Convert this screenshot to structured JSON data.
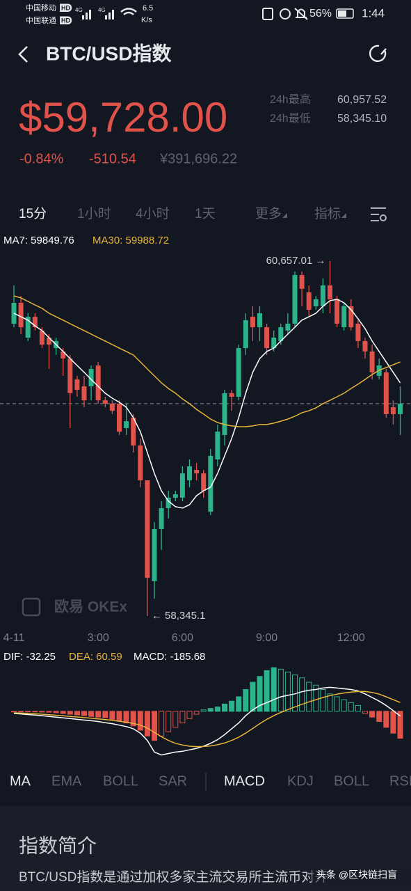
{
  "status_bar": {
    "carrier1": "中国移动",
    "carrier2": "中国联通",
    "hd": "HD",
    "net": "4G",
    "speed": "6.5",
    "speed_unit": "K/s",
    "battery": "56%",
    "time": "1:44"
  },
  "header": {
    "title": "BTC/USD指数"
  },
  "ticker": {
    "price": "$59,728.00",
    "change_pct": "-0.84%",
    "change": "-510.54",
    "cny": "¥391,696.22",
    "stats": [
      {
        "label": "24h最高",
        "value": "60,957.52"
      },
      {
        "label": "24h最低",
        "value": "58,345.10"
      }
    ]
  },
  "timeframes": [
    "15分",
    "1小时",
    "4小时",
    "1天",
    "更多",
    "指标"
  ],
  "chart_data": [
    {
      "type": "candlestick",
      "up_color": "#2bb38a",
      "down_color": "#e0524a",
      "categories": [
        "4-11",
        null,
        null,
        null,
        null,
        null,
        null,
        null,
        null,
        null,
        null,
        null,
        "3:00",
        null,
        null,
        null,
        null,
        null,
        null,
        null,
        null,
        null,
        null,
        null,
        "6:00",
        null,
        null,
        null,
        null,
        null,
        null,
        null,
        null,
        null,
        null,
        null,
        "9:00",
        null,
        null,
        null,
        null,
        null,
        null,
        null,
        null,
        null,
        null,
        null,
        "12:00",
        null,
        null,
        null,
        null,
        null,
        null,
        null
      ],
      "open": [
        60249,
        60385,
        60158,
        60294,
        60204,
        60158,
        60090,
        60068,
        60022,
        59886,
        59841,
        59841,
        59977,
        59750,
        59728,
        59728,
        59569,
        59637,
        59456,
        59229,
        58572,
        58912,
        59048,
        59116,
        59116,
        59229,
        59297,
        59274,
        59025,
        59365,
        59524,
        59796,
        59773,
        60090,
        60294,
        60226,
        60226,
        60090,
        60136,
        60204,
        60249,
        60566,
        60453,
        60362,
        60362,
        60498,
        60408,
        60226,
        60362,
        60249,
        60136,
        60068,
        59909,
        59932,
        59705,
        59660
      ],
      "high": [
        60498,
        60430,
        60317,
        60317,
        60226,
        60181,
        60158,
        60090,
        60045,
        59909,
        59909,
        59977,
        60000,
        59773,
        59750,
        59750,
        59728,
        59660,
        59501,
        59229,
        58957,
        59093,
        59161,
        59161,
        59320,
        59365,
        59342,
        59297,
        59433,
        59592,
        59818,
        59818,
        60113,
        60317,
        60362,
        60362,
        60249,
        60204,
        60249,
        60317,
        60589,
        60589,
        60498,
        60430,
        60544,
        60657.01,
        60430,
        60385,
        60408,
        60272,
        60158,
        60113,
        60022,
        59954,
        59750,
        59841
      ],
      "low": [
        60226,
        60181,
        60136,
        60204,
        60090,
        59954,
        60045,
        59909,
        59569,
        59773,
        59705,
        59750,
        59728,
        59705,
        59660,
        59524,
        59524,
        59410,
        59184,
        58345.1,
        58458,
        58776,
        58980,
        59093,
        59093,
        59184,
        59229,
        59116,
        59002,
        59320,
        59456,
        59682,
        59750,
        60045,
        60136,
        60136,
        60045,
        60068,
        60113,
        60181,
        60226,
        60362,
        60294,
        60340,
        60317,
        60317,
        60226,
        60204,
        60204,
        60090,
        60022,
        59886,
        59886,
        59637,
        59592,
        59524
      ],
      "close": [
        60385,
        60226,
        60294,
        60226,
        60113,
        60113,
        60136,
        60022,
        59796,
        59818,
        59750,
        59954,
        59750,
        59728,
        59682,
        59546,
        59614,
        59456,
        59229,
        58594,
        58912,
        59048,
        59116,
        59138,
        59274,
        59320,
        59274,
        59161,
        59388,
        59546,
        59796,
        59773,
        60090,
        60272,
        60226,
        60317,
        60090,
        60158,
        60226,
        60249,
        60566,
        60476,
        60340,
        60408,
        60498,
        60408,
        60249,
        60362,
        60226,
        60136,
        60068,
        59932,
        59977,
        59660,
        59660,
        59728
      ],
      "series": [
        {
          "name": "MA7: 59849.76",
          "color": "#ffffff",
          "values": [
            60317,
            60294,
            60272,
            60235,
            60204,
            60158,
            60113,
            60068,
            60022,
            59977,
            59932,
            59886,
            59841,
            59796,
            59764,
            59737,
            59705,
            59637,
            59546,
            59410,
            59274,
            59161,
            59093,
            59057,
            59048,
            59070,
            59129,
            59161,
            59184,
            59274,
            59388,
            59501,
            59637,
            59796,
            59932,
            60022,
            60068,
            60090,
            60136,
            60181,
            60226,
            60272,
            60294,
            60317,
            60362,
            60399,
            60408,
            60385,
            60340,
            60281,
            60217,
            60136,
            60068,
            60000,
            59932,
            59864
          ]
        },
        {
          "name": "MA30: 59988.72",
          "color": "#e8b43a",
          "values": [
            60430,
            60417,
            60394,
            60371,
            60349,
            60317,
            60294,
            60272,
            60249,
            60226,
            60204,
            60181,
            60158,
            60136,
            60113,
            60090,
            60068,
            60045,
            60000,
            59954,
            59909,
            59864,
            59827,
            59796,
            59759,
            59728,
            59691,
            59660,
            59628,
            59605,
            59592,
            59583,
            59578,
            59578,
            59583,
            59592,
            59592,
            59601,
            59614,
            59628,
            59646,
            59669,
            59682,
            59701,
            59728,
            59750,
            59773,
            59796,
            59827,
            59855,
            59886,
            59918,
            59945,
            59963,
            59982,
            60000
          ]
        }
      ],
      "price_line": 59728,
      "annotations": [
        {
          "text": "60,657.01 →",
          "x": 45,
          "y": 60657.01
        },
        {
          "text": "← 58,345.1",
          "x": 19,
          "y": 58345.1
        }
      ],
      "watermark": "欧易 OKEx",
      "ylim": [
        58277,
        60725
      ]
    },
    {
      "type": "macd",
      "up_color": "#2bb38a",
      "down_color": "#e0524a",
      "series": [
        {
          "name": "DIF: -32.25",
          "color": "#ffffff",
          "values": [
            -15,
            -18,
            -22,
            -26,
            -30,
            -35,
            -40,
            -45,
            -50,
            -55,
            -60,
            -65,
            -70,
            -78,
            -85,
            -95,
            -105,
            -120,
            -150,
            -200,
            -280,
            -300,
            -290,
            -280,
            -275,
            -265,
            -255,
            -240,
            -220,
            -195,
            -160,
            -120,
            -80,
            -30,
            10,
            40,
            60,
            80,
            100,
            110,
            120,
            135,
            145,
            150,
            160,
            165,
            160,
            155,
            150,
            140,
            120,
            95,
            70,
            40,
            5,
            -32.25
          ]
        },
        {
          "name": "DEA: 60.59",
          "color": "#e8b43a",
          "values": [
            -10,
            -12,
            -14,
            -17,
            -20,
            -23,
            -27,
            -31,
            -35,
            -39,
            -43,
            -47,
            -52,
            -57,
            -62,
            -68,
            -75,
            -83,
            -95,
            -115,
            -145,
            -175,
            -200,
            -220,
            -232,
            -240,
            -243,
            -242,
            -238,
            -230,
            -218,
            -200,
            -178,
            -150,
            -118,
            -85,
            -55,
            -30,
            -8,
            12,
            30,
            48,
            65,
            80,
            95,
            108,
            118,
            126,
            132,
            136,
            136,
            130,
            118,
            100,
            80,
            60.59
          ]
        },
        {
          "name": "MACD: -185.68",
          "color": "#ffffff",
          "bars": true,
          "values": [
            -2,
            -3,
            -3,
            -4,
            -5,
            -6,
            -10,
            -15,
            -20,
            -25,
            -30,
            -35,
            -40,
            -45,
            -55,
            -65,
            -80,
            -100,
            -130,
            -170,
            -200,
            -170,
            -140,
            -110,
            -80,
            -50,
            -20,
            10,
            20,
            30,
            50,
            70,
            100,
            150,
            200,
            240,
            280,
            300,
            290,
            270,
            250,
            230,
            200,
            180,
            150,
            120,
            100,
            80,
            60,
            40,
            -15,
            -40,
            -70,
            -110,
            -150,
            -185.68
          ]
        }
      ],
      "ylim": [
        -350,
        320
      ]
    }
  ],
  "indicator_tabs": {
    "main": [
      "MA",
      "EMA",
      "BOLL",
      "SAR"
    ],
    "sub": [
      "MACD",
      "KDJ",
      "BOLL",
      "RSI"
    ]
  },
  "intro": {
    "title": "指数简介",
    "text": "BTC/USD指数是通过加权多家主流交易所主流币对开"
  },
  "watermark": "头条 @区块链扫盲"
}
